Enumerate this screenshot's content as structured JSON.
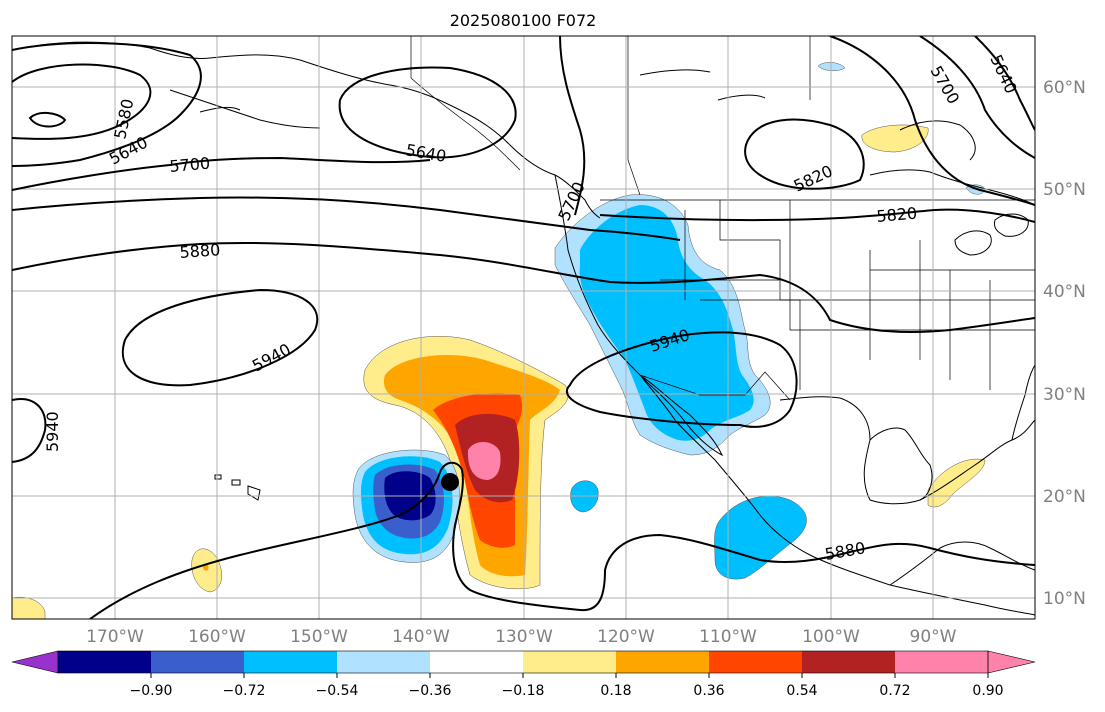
{
  "title": "2025080100 F072",
  "lon_labels": [
    "170°W",
    "160°W",
    "150°W",
    "140°W",
    "130°W",
    "120°W",
    "110°W",
    "100°W",
    "90°W"
  ],
  "lat_labels": [
    "60°N",
    "50°N",
    "40°N",
    "30°N",
    "20°N",
    "10°N"
  ],
  "colorbar": {
    "ticks": [
      "−0.90",
      "−0.72",
      "−0.54",
      "−0.36",
      "−0.18",
      "0.18",
      "0.36",
      "0.54",
      "0.72",
      "0.90"
    ],
    "colors": [
      "#9932cc",
      "#00008b",
      "#3a5fcd",
      "#00bfff",
      "#b0e2ff",
      "#ffffff",
      "#ffec8b",
      "#ffa500",
      "#ff4500",
      "#b22222",
      "#ff82ab"
    ]
  },
  "contour_labels": {
    "c5580": "5580",
    "c5640_a": "5640",
    "c5640_b": "5640",
    "c5640_c": "5640",
    "c5700_a": "5700",
    "c5700_b": "5700",
    "c5700_c": "5700",
    "c5820_a": "5820",
    "c5820_b": "5820",
    "c5880_a": "5880",
    "c5880_b": "5880",
    "c5940_a": "5940",
    "c5940_b": "5940",
    "c5940_c": "5940"
  },
  "storm_marker": "storm-center-dot"
}
